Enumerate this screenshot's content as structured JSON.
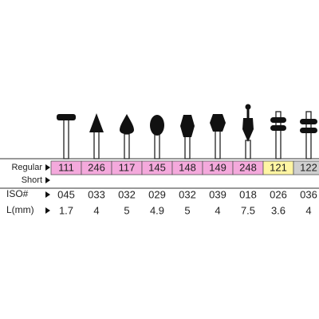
{
  "row_labels": {
    "regular": "Regular",
    "short": "Short",
    "iso": "ISO#",
    "length": "L(mm)"
  },
  "columns": [
    {
      "regular": "111",
      "iso": "045",
      "length": "1.7",
      "color": "#f4a9dc"
    },
    {
      "regular": "246",
      "iso": "033",
      "length": "4",
      "color": "#f4a9dc"
    },
    {
      "regular": "117",
      "iso": "032",
      "length": "5",
      "color": "#f4a9dc"
    },
    {
      "regular": "145",
      "iso": "029",
      "length": "4.9",
      "color": "#f4a9dc"
    },
    {
      "regular": "148",
      "iso": "032",
      "length": "5",
      "color": "#f4a9dc"
    },
    {
      "regular": "149",
      "iso": "039",
      "length": "4",
      "color": "#f4a9dc"
    },
    {
      "regular": "248",
      "iso": "018",
      "length": "7.5",
      "color": "#f4a9dc"
    },
    {
      "regular": "121",
      "iso": "026",
      "length": "3.6",
      "color": "#fff5a3"
    },
    {
      "regular": "122",
      "iso": "036",
      "length": "4",
      "color": "#cfcfcf"
    }
  ]
}
